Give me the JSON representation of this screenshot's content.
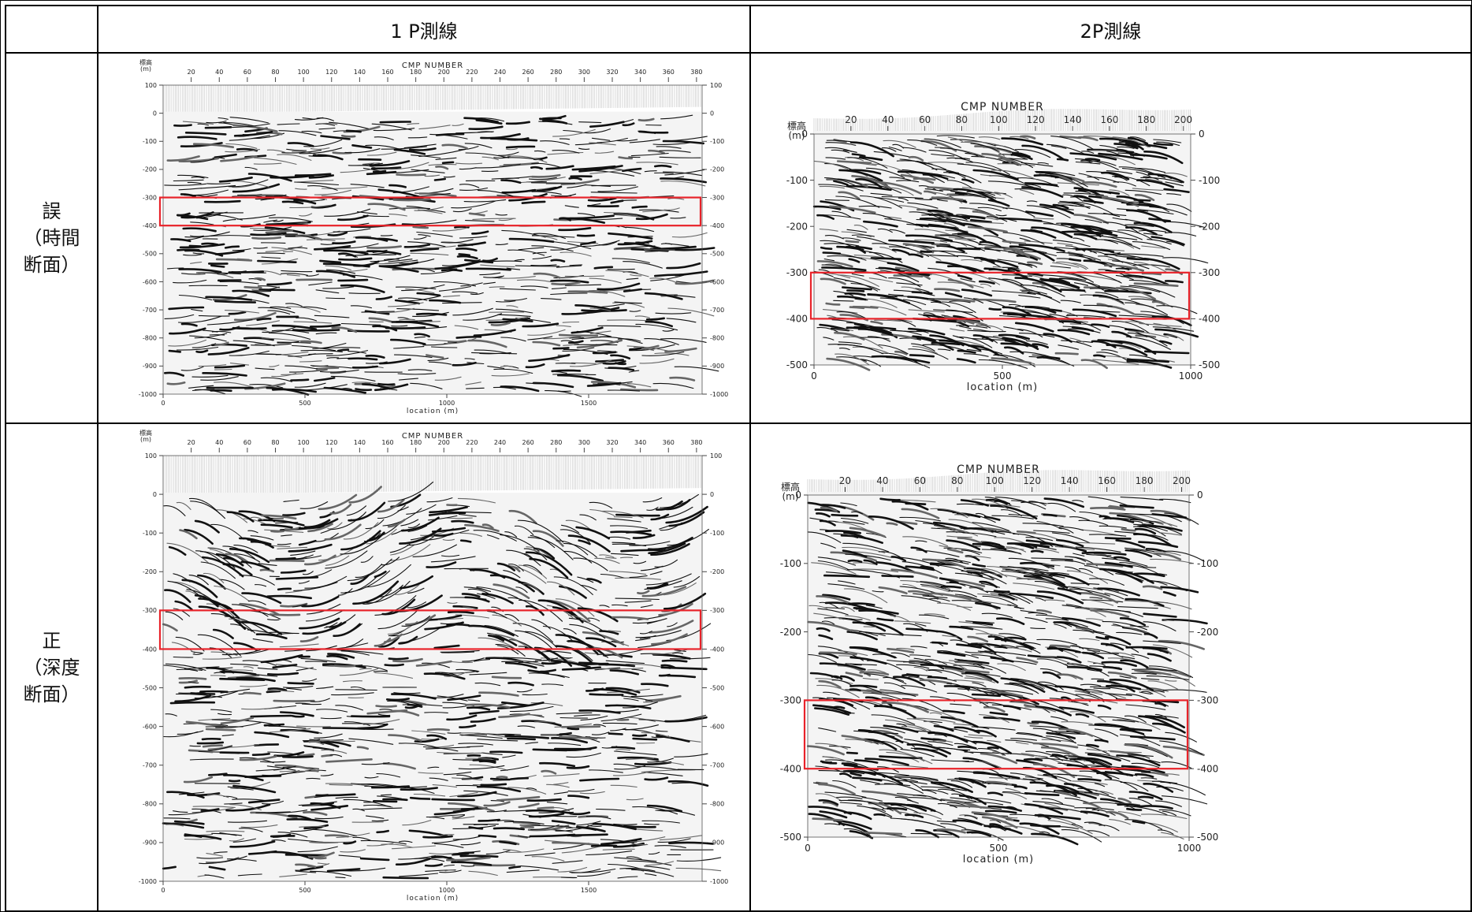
{
  "table": {
    "corner": "",
    "col1_header": "1 P測線",
    "col2_header": "2P測線",
    "row1_label": [
      "誤",
      "（時間",
      "断面）"
    ],
    "row2_label": [
      "正",
      "（深度",
      "断面）"
    ]
  },
  "colors": {
    "highlight_box": "#e8232a",
    "trace": "#111111"
  },
  "panels": {
    "p1": {
      "top_label": "CMP NUMBER",
      "y_unit": [
        "標高",
        "(m)"
      ],
      "cmp_ticks": [
        "20",
        "40",
        "60",
        "80",
        "100",
        "120",
        "140",
        "160",
        "180",
        "200",
        "220",
        "240",
        "260",
        "280",
        "300",
        "320",
        "340",
        "360",
        "380"
      ],
      "y_ticks": [
        "100",
        "0",
        "-100",
        "-200",
        "-300",
        "-400",
        "-500",
        "-600",
        "-700",
        "-800",
        "-900",
        "-1000"
      ],
      "y_ticks_right": [
        "100",
        "0",
        "-100",
        "-200",
        "-300",
        "-400",
        "-500",
        "-600",
        "-700",
        "-800",
        "-900",
        "-1000"
      ],
      "x_ticks": [
        "0",
        "500",
        "1000",
        "1500"
      ],
      "x_label": "location (m)",
      "highlight_range_m": [
        -300,
        -400
      ]
    },
    "p2": {
      "top_label": "CMP NUMBER",
      "y_unit": [
        "標高",
        "(m)"
      ],
      "cmp_ticks": [
        "20",
        "40",
        "60",
        "80",
        "100",
        "120",
        "140",
        "160",
        "180",
        "200"
      ],
      "y_ticks": [
        "0",
        "-100",
        "-200",
        "-300",
        "-400",
        "-500"
      ],
      "y_ticks_right": [
        "0",
        "-100",
        "-200",
        "-300",
        "-400",
        "-500"
      ],
      "x_ticks": [
        "0",
        "500",
        "1000"
      ],
      "x_label": "location (m)",
      "highlight_range_m": [
        -300,
        -400
      ]
    }
  }
}
